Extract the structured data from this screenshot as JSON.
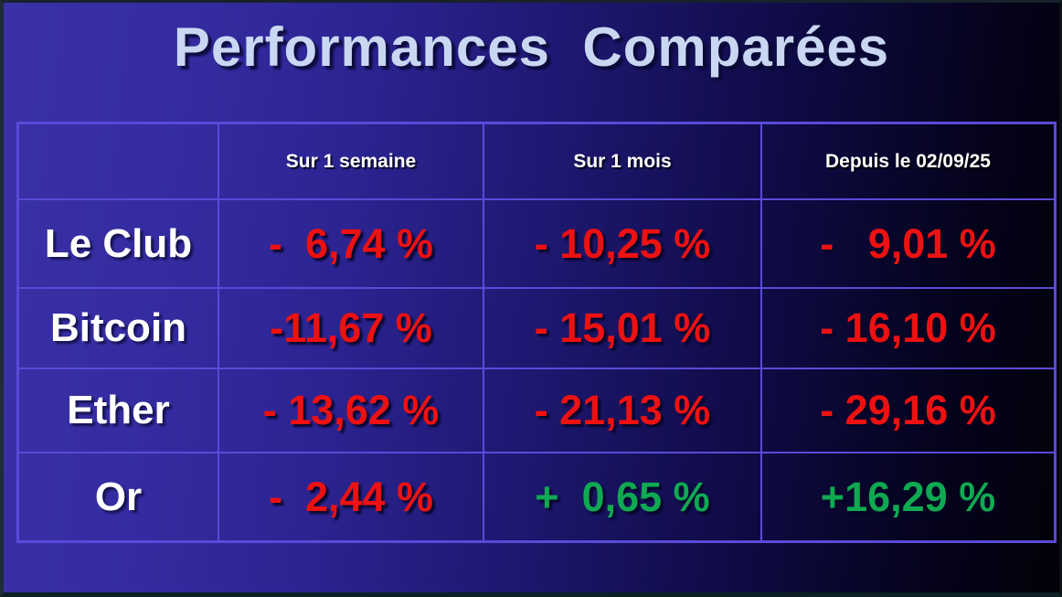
{
  "slide": {
    "title": "Performances  Comparées"
  },
  "table": {
    "headers": [
      "",
      "Sur 1 semaine",
      "Sur 1 mois",
      "Depuis le 02/09/25"
    ],
    "rows": [
      {
        "label": "Le Club",
        "values": [
          {
            "text": "-  6,74 %",
            "trend": "negative"
          },
          {
            "text": "- 10,25 %",
            "trend": "negative"
          },
          {
            "text": "-   9,01 %",
            "trend": "negative"
          }
        ]
      },
      {
        "label": "Bitcoin",
        "values": [
          {
            "text": "-11,67 %",
            "trend": "negative"
          },
          {
            "text": "- 15,01 %",
            "trend": "negative"
          },
          {
            "text": "- 16,10 %",
            "trend": "negative"
          }
        ]
      },
      {
        "label": "Ether",
        "values": [
          {
            "text": "- 13,62 %",
            "trend": "negative"
          },
          {
            "text": "- 21,13 %",
            "trend": "negative"
          },
          {
            "text": "- 29,16 %",
            "trend": "negative"
          }
        ]
      },
      {
        "label": "Or",
        "values": [
          {
            "text": "-  2,44 %",
            "trend": "negative"
          },
          {
            "text": "+  0,65 %",
            "trend": "positive"
          },
          {
            "text": "+16,29 %",
            "trend": "positive"
          }
        ]
      }
    ]
  },
  "colors": {
    "negative": "#ee1111",
    "positive": "#0fa952",
    "grid_border": "#5a4ad8",
    "title_text": "#c9d7f2",
    "background_left": "#3a31a7",
    "background_right": "#020108"
  }
}
